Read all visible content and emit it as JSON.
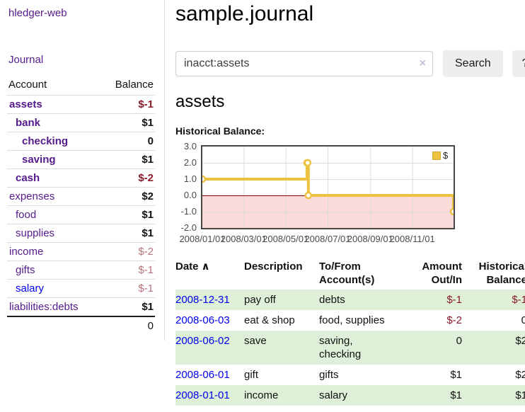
{
  "app": {
    "title": "hledger-web",
    "nav_journal": "Journal"
  },
  "sidebar": {
    "columns": [
      "Account",
      "Balance"
    ],
    "accounts": [
      {
        "name": "assets",
        "indent": 1,
        "bold": true,
        "balance": "$-1",
        "bneg": "strong"
      },
      {
        "name": "bank",
        "indent": 2,
        "bold": true,
        "balance": "$1"
      },
      {
        "name": "checking",
        "indent": 3,
        "bold": true,
        "balance": "0"
      },
      {
        "name": "saving",
        "indent": 3,
        "bold": true,
        "balance": "$1"
      },
      {
        "name": "cash",
        "indent": 2,
        "bold": true,
        "balance": "$-2",
        "bneg": "strong"
      },
      {
        "name": "expenses",
        "indent": 1,
        "bold": false,
        "balance": "$2"
      },
      {
        "name": "food",
        "indent": 2,
        "bold": false,
        "balance": "$1"
      },
      {
        "name": "supplies",
        "indent": 2,
        "bold": false,
        "balance": "$1"
      },
      {
        "name": "income",
        "indent": 1,
        "bold": false,
        "balance": "$-2",
        "bneg": "muted"
      },
      {
        "name": "gifts",
        "indent": 2,
        "bold": false,
        "balance": "$-1",
        "bneg": "muted"
      },
      {
        "name": "salary",
        "indent": 2,
        "bold": false,
        "balance": "$-1",
        "bneg": "muted",
        "link_color": "blue"
      },
      {
        "name": "liabilities:debts",
        "indent": 1,
        "bold": false,
        "balance": "$1"
      }
    ],
    "total": "0"
  },
  "main": {
    "title": "sample.journal",
    "search": {
      "value": "inacct:assets",
      "clear_icon": "×",
      "button_label": "Search",
      "help_label": "?"
    },
    "account_heading": "assets",
    "chart_label": "Historical Balance:"
  },
  "chart_data": {
    "type": "line",
    "step": true,
    "title": "Historical Balance",
    "legend": [
      {
        "label": "$",
        "color": "#edc240"
      }
    ],
    "legend_position": "top-right",
    "points": [
      {
        "date": "2008-01-01",
        "day": 0,
        "value": 1
      },
      {
        "date": "2008-06-01",
        "day": 152,
        "value": 2
      },
      {
        "date": "2008-06-02",
        "day": 153,
        "value": 2
      },
      {
        "date": "2008-06-03",
        "day": 154,
        "value": 0
      },
      {
        "date": "2008-12-31",
        "day": 365,
        "value": -1
      }
    ],
    "xlim_days": [
      0,
      365
    ],
    "ylim": [
      -2,
      3
    ],
    "yticks": [
      "3.0",
      "2.0",
      "1.0",
      "0.0",
      "-1.0",
      "-2.0"
    ],
    "xticks": [
      {
        "label": "2008/01/01",
        "day": 0
      },
      {
        "label": "2008/03/01",
        "day": 60
      },
      {
        "label": "2008/05/01",
        "day": 121
      },
      {
        "label": "2008/07/01",
        "day": 182
      },
      {
        "label": "2008/09/01",
        "day": 244
      },
      {
        "label": "2008/11/01",
        "day": 305
      }
    ],
    "grid": true,
    "grid_color": "#dcdcdc",
    "negative_fill": "#fbdada",
    "zero_line_color": "#8b0000",
    "series_color": "#edc240"
  },
  "register": {
    "sort_icon": "∧",
    "headers": [
      {
        "lines": [
          "Date"
        ]
      },
      {
        "lines": [
          "Description"
        ]
      },
      {
        "lines": [
          "To/From",
          "Account(s)"
        ]
      },
      {
        "lines": [
          "Amount",
          "Out/In"
        ]
      },
      {
        "lines": [
          "Historical",
          "Balance"
        ]
      }
    ],
    "rows": [
      {
        "date": "2008-12-31",
        "description": "pay off",
        "accounts": "debts",
        "amount": "$-1",
        "amount_neg": true,
        "balance": "$-1",
        "balance_neg": true
      },
      {
        "date": "2008-06-03",
        "description": "eat & shop",
        "accounts": "food, supplies",
        "amount": "$-2",
        "amount_neg": true,
        "balance": "0",
        "balance_neg": false
      },
      {
        "date": "2008-06-02",
        "description": "save",
        "accounts": "saving, checking",
        "amount": "0",
        "amount_neg": false,
        "balance": "$2",
        "balance_neg": false
      },
      {
        "date": "2008-06-01",
        "description": "gift",
        "accounts": "gifts",
        "amount": "$1",
        "amount_neg": false,
        "balance": "$2",
        "balance_neg": false
      },
      {
        "date": "2008-01-01",
        "description": "income",
        "accounts": "salary",
        "amount": "$1",
        "amount_neg": false,
        "balance": "$1",
        "balance_neg": false
      }
    ]
  }
}
